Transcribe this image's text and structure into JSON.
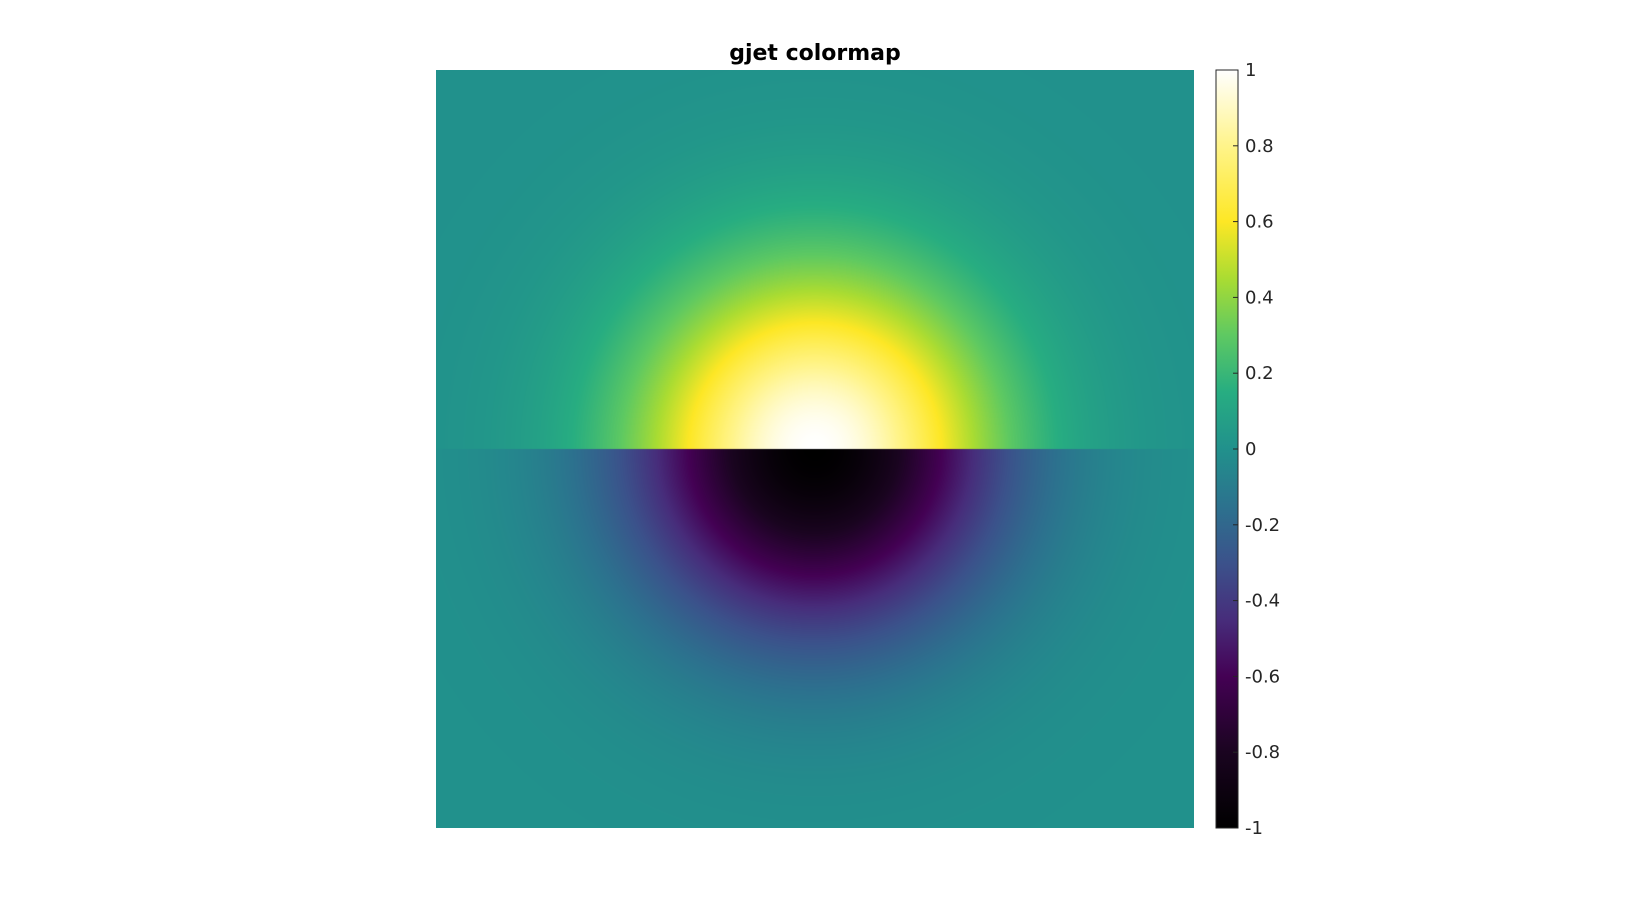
{
  "chart_data": {
    "type": "heatmap",
    "title": "gjet colormap",
    "xlabel": "",
    "ylabel": "",
    "axes_visible": false,
    "field": {
      "description_formula": "value = sign(upper half: +1, lower half: -1) * exp(-r^2 / (2*sigma^2))",
      "x_range": [
        -1,
        1
      ],
      "y_range": [
        -1,
        1
      ],
      "center": [
        0,
        0
      ],
      "sigma": 0.33,
      "upper_half_sign": 1,
      "lower_half_sign": -1
    },
    "clim": [
      -1,
      1
    ],
    "colorbar": {
      "ticks": [
        1,
        0.8,
        0.6,
        0.4,
        0.2,
        0,
        -0.2,
        -0.4,
        -0.6,
        -0.8,
        -1
      ],
      "tick_labels": [
        "1",
        "0.8",
        "0.6",
        "0.4",
        "0.2",
        "0",
        "-0.2",
        "-0.4",
        "-0.6",
        "-0.8",
        "-1"
      ]
    },
    "colormap_stops": [
      {
        "v": -1.0,
        "color": "#000000"
      },
      {
        "v": -0.8,
        "color": "#1a0420"
      },
      {
        "v": -0.6,
        "color": "#440154"
      },
      {
        "v": -0.45,
        "color": "#472d7b"
      },
      {
        "v": -0.3,
        "color": "#3b528b"
      },
      {
        "v": -0.15,
        "color": "#2c728e"
      },
      {
        "v": 0.0,
        "color": "#21918c"
      },
      {
        "v": 0.15,
        "color": "#27ad81"
      },
      {
        "v": 0.3,
        "color": "#5ec962"
      },
      {
        "v": 0.45,
        "color": "#aadc32"
      },
      {
        "v": 0.6,
        "color": "#fde725"
      },
      {
        "v": 0.8,
        "color": "#fff48a"
      },
      {
        "v": 1.0,
        "color": "#ffffff"
      }
    ]
  }
}
